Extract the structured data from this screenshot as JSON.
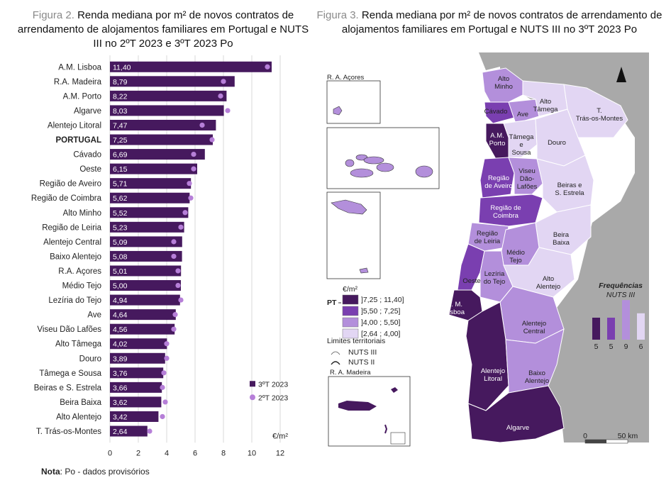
{
  "figure2": {
    "lead": "Figura 2.",
    "title": "Renda mediana por m² de novos contratos de arrendamento de alojamentos familiares em Portugal e NUTS III no 2ºT 2023 e 3ºT 2023 Po"
  },
  "figure3": {
    "lead": "Figura 3.",
    "title": "Renda mediana por m² de novos contratos de arrendamento de alojamentos familiares em Portugal e NUTS III no 3ºT 2023 Po"
  },
  "note": {
    "label": "Nota",
    "text": ": Po - dados provisórios"
  },
  "colors": {
    "bar": "#46195e",
    "dot": "#b67fd8",
    "grid": "#d8d8d8",
    "ocean": "#ffffff",
    "land": "#a9a9a9"
  },
  "chart_data": {
    "type": "bar",
    "orientation": "horizontal",
    "title": "Renda mediana por m² de novos contratos de arrendamento de alojamentos familiares em Portugal e NUTS III no 2ºT 2023 e 3ºT 2023 Po",
    "unit_label": "€/m²",
    "xlim": [
      0,
      12
    ],
    "xticks": [
      "0",
      "2",
      "4",
      "6",
      "8",
      "10",
      "12"
    ],
    "grid": true,
    "legend_position": "bottom-right",
    "categories": [
      "A.M. Lisboa",
      "R.A. Madeira",
      "A.M. Porto",
      "Algarve",
      "Alentejo Litoral",
      "PORTUGAL",
      "Cávado",
      "Oeste",
      "Região de Aveiro",
      "Região de Coimbra",
      "Alto Minho",
      "Região de Leiria",
      "Alentejo Central",
      "Baixo Alentejo",
      "R.A. Açores",
      "Médio Tejo",
      "Lezíria do Tejo",
      "Ave",
      "Viseu Dão Lafões",
      "Alto Tâmega",
      "Douro",
      "Tâmega e Sousa",
      "Beiras e S. Estrela",
      "Beira Baixa",
      "Alto Alentejo",
      "T. Trás-os-Montes"
    ],
    "value_labels": [
      "11,40",
      "8,79",
      "8,22",
      "8,03",
      "7,47",
      "7,25",
      "6,69",
      "6,15",
      "5,71",
      "5,62",
      "5,52",
      "5,23",
      "5,09",
      "5,08",
      "5,01",
      "5,00",
      "4,94",
      "4,64",
      "4,56",
      "4,02",
      "3,89",
      "3,76",
      "3,66",
      "3,62",
      "3,42",
      "2,64"
    ],
    "series": [
      {
        "name": "3ºT 2023",
        "style": "bar",
        "values": [
          11.4,
          8.79,
          8.22,
          8.03,
          7.47,
          7.25,
          6.69,
          6.15,
          5.71,
          5.62,
          5.52,
          5.23,
          5.09,
          5.08,
          5.01,
          5.0,
          4.94,
          4.64,
          4.56,
          4.02,
          3.89,
          3.76,
          3.66,
          3.62,
          3.42,
          2.64
        ]
      },
      {
        "name": "2ºT 2023",
        "style": "dot",
        "values": [
          11.1,
          8.0,
          7.8,
          8.3,
          6.5,
          7.2,
          5.9,
          5.9,
          5.6,
          5.7,
          5.3,
          5.0,
          4.5,
          4.5,
          4.8,
          4.8,
          5.0,
          4.6,
          4.5,
          4.0,
          4.0,
          3.8,
          3.7,
          3.9,
          3.7,
          2.8
        ]
      }
    ]
  },
  "map": {
    "insets": {
      "acores": "R. A. Açores",
      "madeira": "R. A. Madeira"
    },
    "legend": {
      "unit": "€/m²",
      "pt_marker": "PT",
      "classes": [
        {
          "label": "]7,25 ; 11,40]",
          "color": "#46195e",
          "freq": "5"
        },
        {
          "label": "]5,50 ; 7,25]",
          "color": "#7a3fb0",
          "freq": "5"
        },
        {
          "label": "]4,00 ; 5,50]",
          "color": "#b38fdb",
          "freq": "9"
        },
        {
          "label": "[2,64 ; 4,00]",
          "color": "#e2d6f3",
          "freq": "6"
        }
      ],
      "limits_title": "Limites territoriais",
      "nuts3": "NUTS III",
      "nuts2": "NUTS II"
    },
    "freq_title": "Frequências",
    "freq_sub": "NUTS III",
    "scale": {
      "zero": "0",
      "max": "50 km"
    },
    "regions": [
      "Alto Minho",
      "Cávado",
      "Ave",
      "Alto Tâmega",
      "T. Trás-os-Montes",
      "A.M. Porto",
      "Tâmega e Sousa",
      "Douro",
      "Região de Aveiro",
      "Viseu Dão Lafões",
      "Beiras e S. Estrela",
      "Região de Coimbra",
      "Região de Leiria",
      "Beira Baixa",
      "Médio Tejo",
      "Oeste",
      "Lezíria do Tejo",
      "Alto Alentejo",
      "A. M. Lisboa",
      "Alentejo Central",
      "Alentejo Litoral",
      "Baixo Alentejo",
      "Algarve"
    ]
  }
}
